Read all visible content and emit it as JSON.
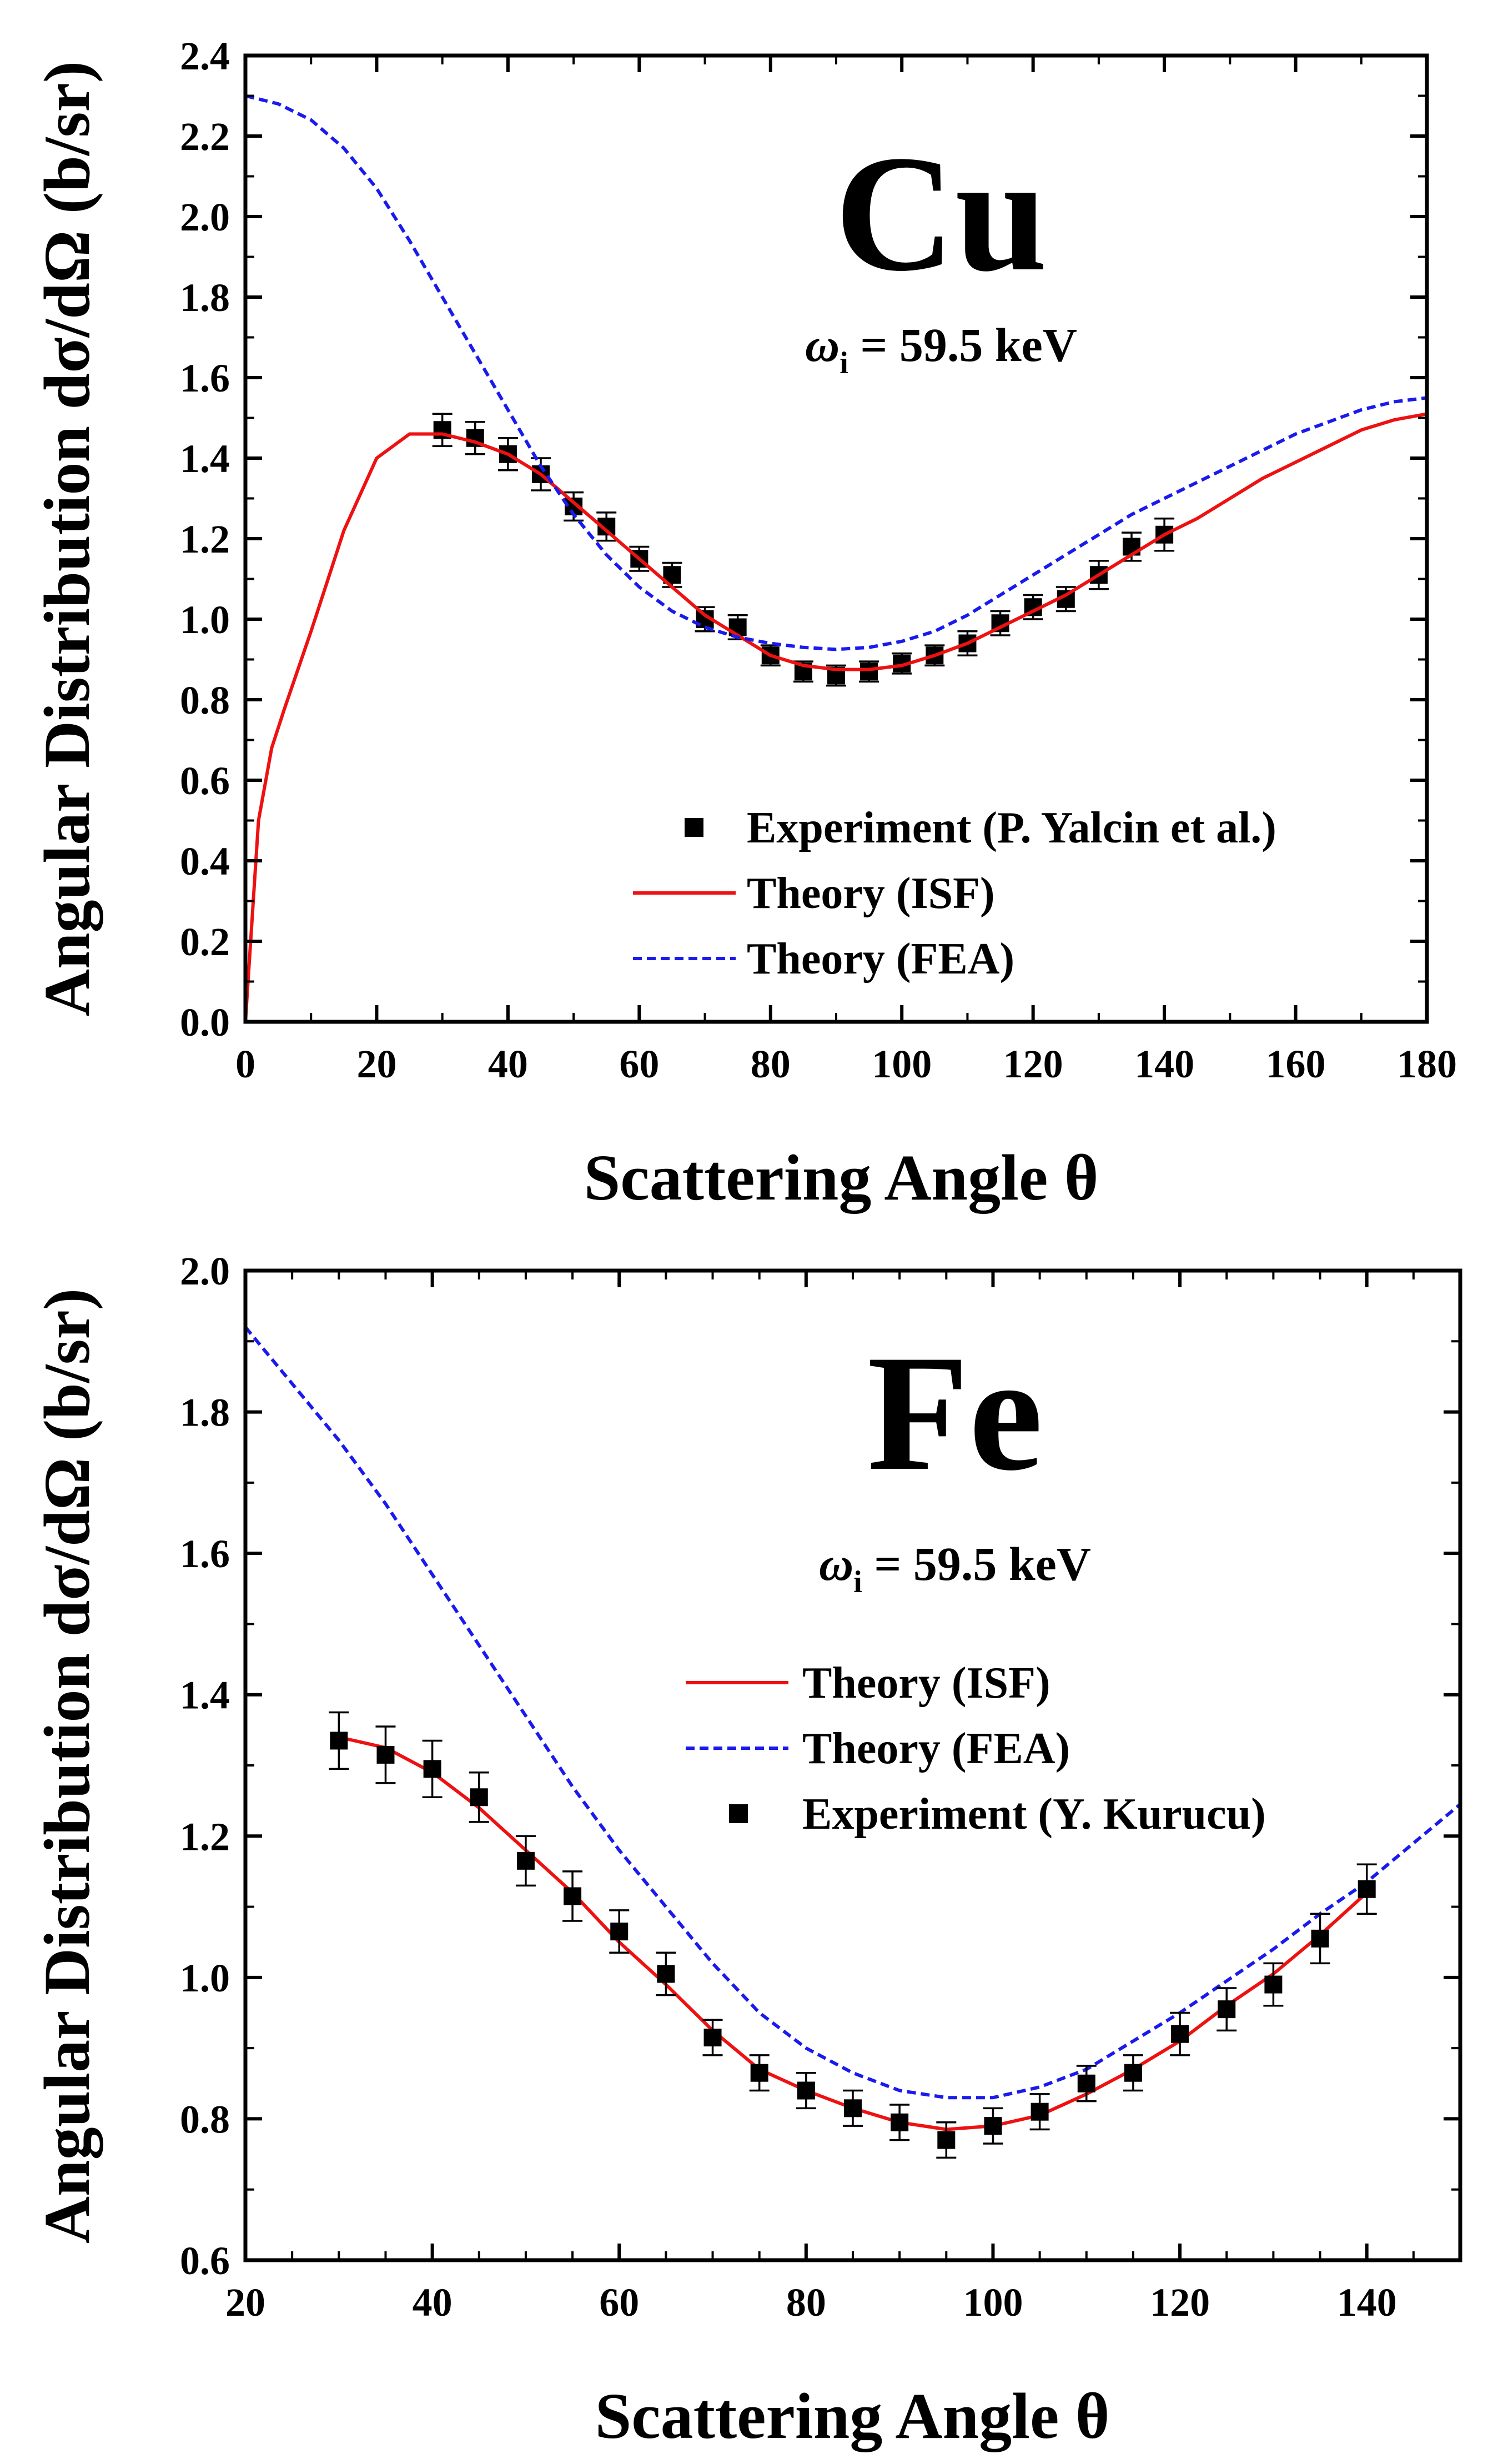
{
  "chart_data": [
    {
      "type": "line",
      "title": "Cu",
      "subtitle_symbol": "ω",
      "subtitle_sub": "i",
      "subtitle_rest": " = 59.5 keV",
      "xlabel": "Scattering Angle θ",
      "ylabel": "Angular Distribution dσ/dΩ (b/sr)",
      "xlim": [
        0,
        180
      ],
      "ylim": [
        0,
        2.4
      ],
      "xticks": [
        "0",
        "20",
        "40",
        "60",
        "80",
        "100",
        "120",
        "140",
        "160",
        "180"
      ],
      "yticks": [
        "0.0",
        "0.2",
        "0.4",
        "0.6",
        "0.8",
        "1.0",
        "1.2",
        "1.4",
        "1.6",
        "1.8",
        "2.0",
        "2.2",
        "2.4"
      ],
      "grid": false,
      "legend_position": "lower-right",
      "legend": [
        "Experiment (P. Yalcin et al.)",
        "Theory (ISF)",
        "Theory (FEA)"
      ],
      "series": [
        {
          "name": "Experiment (P. Yalcin et al.)",
          "kind": "scatter",
          "color": "#000000",
          "x": [
            30,
            35,
            40,
            45,
            50,
            55,
            60,
            65,
            70,
            75,
            80,
            85,
            90,
            95,
            100,
            105,
            110,
            115,
            120,
            125,
            130,
            135,
            140
          ],
          "y": [
            1.47,
            1.45,
            1.41,
            1.36,
            1.28,
            1.23,
            1.15,
            1.11,
            1.0,
            0.98,
            0.91,
            0.87,
            0.86,
            0.87,
            0.89,
            0.91,
            0.94,
            0.99,
            1.03,
            1.05,
            1.11,
            1.18,
            1.21
          ],
          "err": [
            0.04,
            0.04,
            0.04,
            0.04,
            0.035,
            0.035,
            0.03,
            0.03,
            0.03,
            0.03,
            0.025,
            0.025,
            0.025,
            0.025,
            0.025,
            0.025,
            0.03,
            0.03,
            0.03,
            0.03,
            0.035,
            0.035,
            0.04
          ]
        },
        {
          "name": "Theory (ISF)",
          "kind": "line",
          "color": "#ee1111",
          "x": [
            0,
            2,
            4,
            6,
            10,
            15,
            20,
            25,
            30,
            35,
            40,
            45,
            50,
            55,
            60,
            65,
            70,
            75,
            80,
            85,
            90,
            95,
            100,
            105,
            110,
            115,
            120,
            125,
            130,
            135,
            140,
            145,
            150,
            155,
            160,
            165,
            170,
            175,
            180
          ],
          "y": [
            0.0,
            0.5,
            0.68,
            0.78,
            0.97,
            1.22,
            1.4,
            1.46,
            1.46,
            1.44,
            1.41,
            1.36,
            1.29,
            1.22,
            1.15,
            1.08,
            1.01,
            0.96,
            0.91,
            0.885,
            0.875,
            0.875,
            0.885,
            0.91,
            0.94,
            0.98,
            1.02,
            1.06,
            1.11,
            1.16,
            1.21,
            1.25,
            1.3,
            1.35,
            1.39,
            1.43,
            1.47,
            1.495,
            1.51
          ]
        },
        {
          "name": "Theory (FEA)",
          "kind": "dashed",
          "color": "#1a1aee",
          "x": [
            0,
            5,
            10,
            15,
            20,
            25,
            30,
            35,
            40,
            45,
            50,
            55,
            60,
            65,
            70,
            75,
            80,
            85,
            90,
            95,
            100,
            105,
            110,
            115,
            120,
            125,
            130,
            135,
            140,
            145,
            150,
            155,
            160,
            165,
            170,
            175,
            180
          ],
          "y": [
            2.3,
            2.28,
            2.24,
            2.17,
            2.07,
            1.94,
            1.8,
            1.66,
            1.52,
            1.38,
            1.26,
            1.16,
            1.08,
            1.02,
            0.98,
            0.955,
            0.94,
            0.93,
            0.925,
            0.93,
            0.945,
            0.97,
            1.01,
            1.06,
            1.11,
            1.16,
            1.21,
            1.26,
            1.3,
            1.34,
            1.38,
            1.42,
            1.46,
            1.49,
            1.52,
            1.54,
            1.55
          ]
        }
      ]
    },
    {
      "type": "line",
      "title": "Fe",
      "subtitle_symbol": "ω",
      "subtitle_sub": "i",
      "subtitle_rest": " = 59.5 keV",
      "xlabel": "Scattering Angle θ",
      "ylabel": "Angular Distribution dσ/dΩ (b/sr)",
      "xlim": [
        20,
        150
      ],
      "ylim": [
        0.6,
        2.0
      ],
      "xticks": [
        "20",
        "40",
        "60",
        "80",
        "100",
        "120",
        "140"
      ],
      "yticks": [
        "0.6",
        "0.8",
        "1.0",
        "1.2",
        "1.4",
        "1.6",
        "1.8",
        "2.0"
      ],
      "grid": false,
      "legend_position": "upper-right",
      "legend": [
        "Theory (ISF)",
        "Theory (FEA)",
        "Experiment (Y. Kurucu)"
      ],
      "series": [
        {
          "name": "Theory (ISF)",
          "kind": "line",
          "color": "#ee1111",
          "x": [
            30,
            35,
            40,
            45,
            50,
            55,
            60,
            65,
            70,
            75,
            80,
            85,
            90,
            95,
            100,
            105,
            110,
            115,
            120,
            125,
            130,
            135,
            140
          ],
          "y": [
            1.34,
            1.325,
            1.29,
            1.24,
            1.18,
            1.12,
            1.05,
            0.99,
            0.925,
            0.87,
            0.84,
            0.815,
            0.795,
            0.785,
            0.79,
            0.805,
            0.835,
            0.87,
            0.91,
            0.96,
            1.005,
            1.06,
            1.12
          ]
        },
        {
          "name": "Theory (FEA)",
          "kind": "dashed",
          "color": "#1a1aee",
          "x": [
            20,
            25,
            30,
            35,
            40,
            45,
            50,
            55,
            60,
            65,
            70,
            75,
            80,
            85,
            90,
            95,
            100,
            105,
            110,
            115,
            120,
            125,
            130,
            135,
            140,
            145,
            150
          ],
          "y": [
            1.92,
            1.84,
            1.76,
            1.67,
            1.57,
            1.47,
            1.37,
            1.27,
            1.18,
            1.1,
            1.02,
            0.95,
            0.9,
            0.865,
            0.84,
            0.83,
            0.83,
            0.845,
            0.87,
            0.91,
            0.95,
            0.995,
            1.04,
            1.09,
            1.135,
            1.19,
            1.245
          ]
        },
        {
          "name": "Experiment (Y. Kurucu)",
          "kind": "scatter",
          "color": "#000000",
          "x": [
            30,
            35,
            40,
            45,
            50,
            55,
            60,
            65,
            70,
            75,
            80,
            85,
            90,
            95,
            100,
            105,
            110,
            115,
            120,
            125,
            130,
            135,
            140
          ],
          "y": [
            1.335,
            1.315,
            1.295,
            1.255,
            1.165,
            1.115,
            1.065,
            1.005,
            0.915,
            0.865,
            0.84,
            0.815,
            0.795,
            0.77,
            0.79,
            0.81,
            0.85,
            0.865,
            0.92,
            0.955,
            0.99,
            1.055,
            1.125
          ],
          "err": [
            0.04,
            0.04,
            0.04,
            0.035,
            0.035,
            0.035,
            0.03,
            0.03,
            0.025,
            0.025,
            0.025,
            0.025,
            0.025,
            0.025,
            0.025,
            0.025,
            0.025,
            0.025,
            0.03,
            0.03,
            0.03,
            0.035,
            0.035
          ]
        }
      ]
    }
  ]
}
